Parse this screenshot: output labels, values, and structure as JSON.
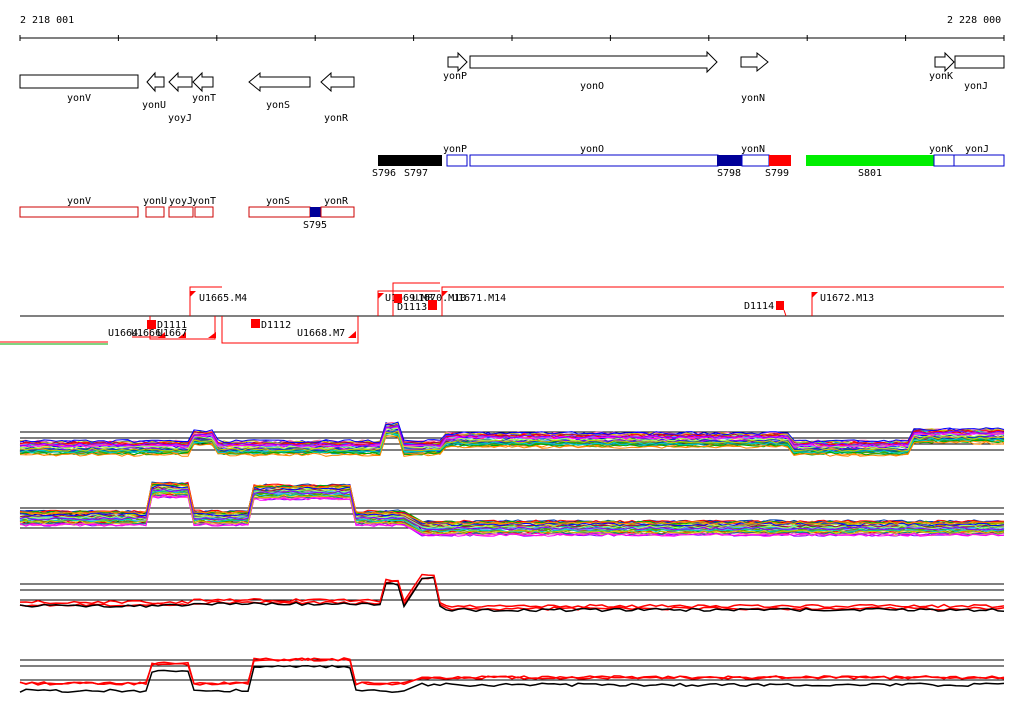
{
  "coords": {
    "start": "2 218 001",
    "end": "2 228 000"
  },
  "genes_strand": [
    {
      "name": "yonV",
      "dir": "none"
    },
    {
      "name": "yonU",
      "dir": "left"
    },
    {
      "name": "yoyJ",
      "dir": "left"
    },
    {
      "name": "yonT",
      "dir": "left"
    },
    {
      "name": "yonS",
      "dir": "left"
    },
    {
      "name": "yonR",
      "dir": "left"
    },
    {
      "name": "yonP",
      "dir": "right"
    },
    {
      "name": "yonO",
      "dir": "right"
    },
    {
      "name": "yonN",
      "dir": "right"
    },
    {
      "name": "yonK",
      "dir": "right"
    },
    {
      "name": "yonJ",
      "dir": "none"
    }
  ],
  "segments_top": {
    "genes": [
      "yonP",
      "yonO",
      "yonN",
      "yonK",
      "yonJ"
    ],
    "features": [
      {
        "label": "S796",
        "color": "#000000"
      },
      {
        "label": "S797",
        "color": "#000000"
      },
      {
        "label": "S798",
        "color": "#000099"
      },
      {
        "label": "S799",
        "color": "#ff0000"
      },
      {
        "label": "S801",
        "color": "#00ee00"
      }
    ]
  },
  "segments_bottom": {
    "genes": [
      "yonV",
      "yonU",
      "yoyJ",
      "yonT",
      "yonS",
      "yonR"
    ],
    "features": [
      {
        "label": "S795",
        "color": "#000099"
      }
    ]
  },
  "transcripts": [
    {
      "label": "U1665.M4"
    },
    {
      "label": "U1671.M14"
    },
    {
      "label": "U1672.M13"
    },
    {
      "label": "U1668.M7"
    },
    {
      "label": "D1111"
    },
    {
      "label": "D1112"
    },
    {
      "label": "D1113"
    },
    {
      "label": "D1114"
    },
    {
      "label": "U1669.M8"
    },
    {
      "label": "U1670.M10"
    },
    {
      "label": "U1667"
    },
    {
      "label": "U1666"
    },
    {
      "label": "U1664"
    }
  ],
  "colors": {
    "gene_outline": "#000000",
    "segment_outline_blue": "#0000cc",
    "segment_outline_red": "#cc0000",
    "transcript_line": "#ff0000",
    "marker": "#ff0000",
    "profile_sense": "#ff0000",
    "profile_antisense": "#000000"
  }
}
